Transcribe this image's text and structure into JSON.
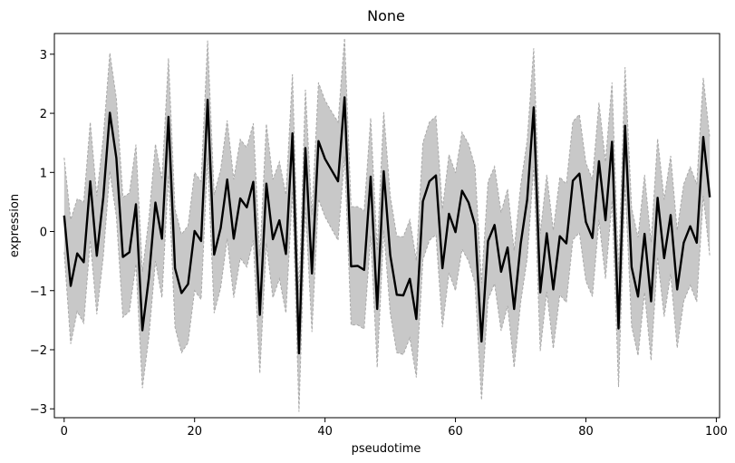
{
  "chart_data": {
    "type": "line",
    "title": "None",
    "xlabel": "pseudotime",
    "ylabel": "expression",
    "xlim": [
      -1.5,
      100.5
    ],
    "ylim": [
      -3.15,
      3.35
    ],
    "xticks": [
      0,
      20,
      40,
      60,
      80,
      100
    ],
    "yticks": [
      -3,
      -2,
      -1,
      0,
      1,
      2,
      3
    ],
    "grid": false,
    "colors": {
      "line": "#000000",
      "band_fill": "#c8c8c8",
      "band_edge": "#a8a8a8"
    },
    "series": [
      {
        "x": [
          0,
          1,
          2,
          3,
          4,
          5,
          6,
          7,
          8,
          9,
          10,
          11,
          12,
          13,
          14,
          15,
          16,
          17,
          18,
          19,
          20,
          21,
          22,
          23,
          24,
          25,
          26,
          27,
          28,
          29,
          30,
          31,
          32,
          33,
          34,
          35,
          36,
          37,
          38,
          39,
          40,
          41,
          42,
          43,
          44,
          45,
          46,
          47,
          48,
          49,
          50,
          51,
          52,
          53,
          54,
          55,
          56,
          57,
          58,
          59,
          60,
          61,
          62,
          63,
          64,
          65,
          66,
          67,
          68,
          69,
          70,
          71,
          72,
          73,
          74,
          75,
          76,
          77,
          78,
          79,
          80,
          81,
          82,
          83,
          84,
          85,
          86,
          87,
          88,
          89,
          90,
          91,
          92,
          93,
          94,
          95,
          96,
          97,
          98,
          99
        ],
        "y": [
          0.27,
          -0.92,
          -0.37,
          -0.52,
          0.85,
          -0.41,
          0.58,
          2.01,
          1.24,
          -0.43,
          -0.35,
          0.46,
          -1.67,
          -0.78,
          0.49,
          -0.12,
          1.94,
          -0.62,
          -1.04,
          -0.89,
          0.01,
          -0.16,
          2.23,
          -0.39,
          0.06,
          0.88,
          -0.12,
          0.56,
          0.41,
          0.84,
          -1.41,
          0.81,
          -0.13,
          0.19,
          -0.38,
          1.66,
          -2.06,
          1.41,
          -0.71,
          1.53,
          1.23,
          1.04,
          0.85,
          2.27,
          -0.59,
          -0.58,
          -0.65,
          0.93,
          -1.31,
          1.02,
          -0.4,
          -1.07,
          -1.08,
          -0.8,
          -1.48,
          0.51,
          0.85,
          0.95,
          -0.62,
          0.3,
          -0.01,
          0.69,
          0.49,
          0.11,
          -1.86,
          -0.16,
          0.11,
          -0.68,
          -0.27,
          -1.31,
          -0.21,
          0.54,
          2.1,
          -1.03,
          -0.03,
          -0.98,
          -0.08,
          -0.2,
          0.86,
          0.98,
          0.16,
          -0.11,
          1.19,
          0.19,
          1.52,
          -1.64,
          1.79,
          -0.6,
          -1.1,
          -0.04,
          -1.18,
          0.57,
          -0.45,
          0.28,
          -0.98,
          -0.19,
          0.09,
          -0.19,
          1.6,
          0.58
        ],
        "lower": [
          -0.35,
          -1.9,
          -1.35,
          -1.55,
          -0.15,
          -1.4,
          -0.42,
          1.02,
          0.25,
          -1.45,
          -1.35,
          -0.55,
          -2.65,
          -1.78,
          -0.5,
          -1.12,
          0.95,
          -1.62,
          -2.05,
          -1.88,
          -1.0,
          -1.15,
          1.25,
          -1.38,
          -0.95,
          -0.12,
          -1.12,
          -0.45,
          -0.6,
          -0.15,
          -2.4,
          -0.2,
          -1.12,
          -0.8,
          -1.38,
          0.68,
          -3.05,
          0.42,
          -1.7,
          0.55,
          0.25,
          0.05,
          -0.15,
          1.27,
          -1.58,
          -1.58,
          -1.65,
          -0.07,
          -2.3,
          0.02,
          -1.38,
          -2.05,
          -2.08,
          -1.8,
          -2.47,
          -0.48,
          -0.15,
          -0.05,
          -1.62,
          -0.7,
          -1.0,
          -0.3,
          -0.5,
          -0.88,
          -2.85,
          -1.15,
          -0.88,
          -1.68,
          -1.26,
          -2.3,
          -1.2,
          -0.46,
          1.1,
          -2.02,
          -1.02,
          -1.98,
          -1.07,
          -1.2,
          -0.14,
          -0.02,
          -0.84,
          -1.1,
          0.2,
          -0.8,
          0.52,
          -2.63,
          0.8,
          -1.6,
          -2.1,
          -1.03,
          -2.18,
          -0.43,
          -1.44,
          -0.72,
          -1.97,
          -1.18,
          -0.91,
          -1.19,
          0.6,
          -0.42
        ],
        "upper": [
          1.25,
          0.2,
          0.55,
          0.5,
          1.85,
          0.6,
          1.6,
          3.02,
          2.25,
          0.58,
          0.65,
          1.47,
          -0.68,
          0.22,
          1.48,
          0.88,
          2.93,
          0.38,
          -0.05,
          0.1,
          1.0,
          0.85,
          3.23,
          0.62,
          1.05,
          1.88,
          0.88,
          1.56,
          1.42,
          1.83,
          -0.42,
          1.82,
          0.88,
          1.18,
          0.62,
          2.66,
          -1.07,
          2.4,
          0.28,
          2.52,
          2.22,
          2.03,
          1.85,
          3.27,
          0.42,
          0.42,
          0.35,
          1.92,
          -0.32,
          2.02,
          0.6,
          -0.08,
          -0.09,
          0.2,
          -0.49,
          1.5,
          1.85,
          1.95,
          0.38,
          1.3,
          0.99,
          1.68,
          1.48,
          1.1,
          -0.87,
          0.84,
          1.1,
          0.32,
          0.72,
          -0.32,
          0.78,
          1.54,
          3.1,
          -0.04,
          0.96,
          0.02,
          0.92,
          0.8,
          1.86,
          1.98,
          1.16,
          0.88,
          2.18,
          1.18,
          2.52,
          -0.65,
          2.78,
          0.4,
          -0.1,
          0.96,
          -0.18,
          1.57,
          0.54,
          1.28,
          0.02,
          0.8,
          1.09,
          0.8,
          2.6,
          1.58
        ]
      }
    ]
  }
}
